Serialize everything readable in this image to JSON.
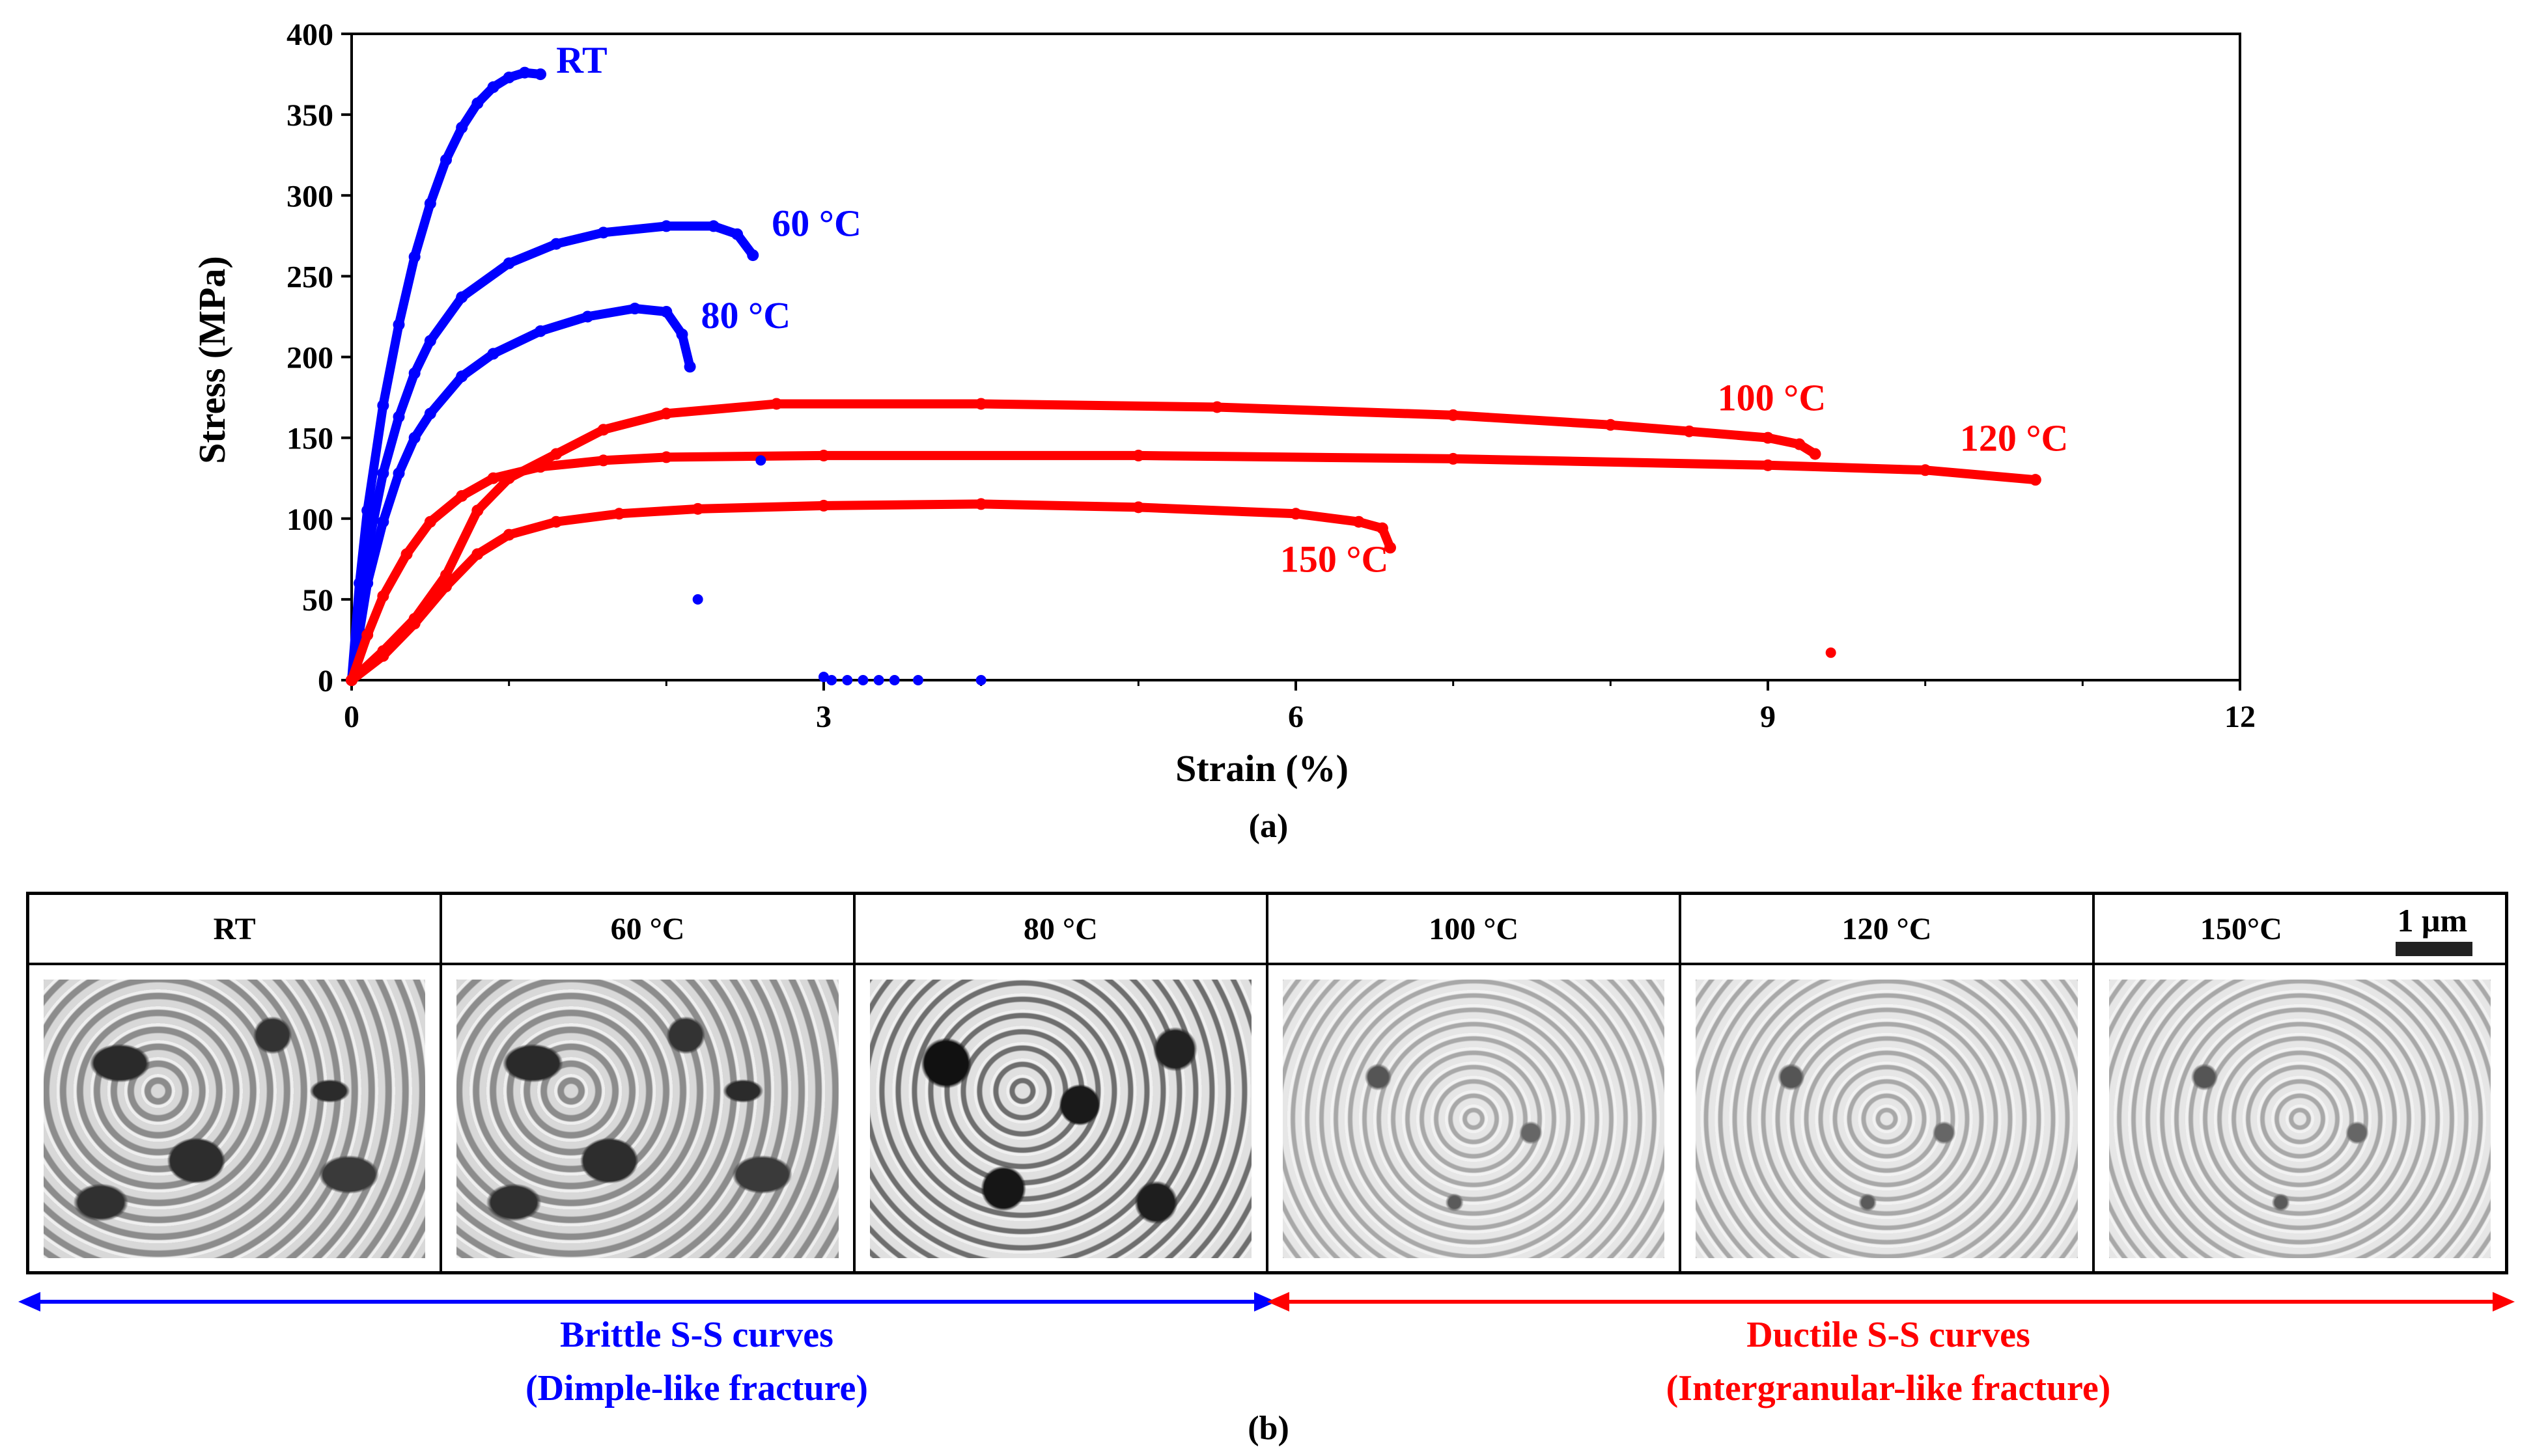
{
  "chart_data": {
    "type": "scatter",
    "xlabel": "Strain (%)",
    "ylabel": "Stress (MPa)",
    "xlim": [
      0,
      12
    ],
    "ylim": [
      0,
      400
    ],
    "xticks": [
      0,
      3,
      6,
      9,
      12
    ],
    "yticks": [
      0,
      50,
      100,
      150,
      200,
      250,
      300,
      350,
      400
    ],
    "series": [
      {
        "name": "RT",
        "label": "RT",
        "color": "#0000ff",
        "x": [
          0,
          0.05,
          0.1,
          0.2,
          0.3,
          0.4,
          0.5,
          0.6,
          0.7,
          0.8,
          0.9,
          1.0,
          1.1,
          1.2
        ],
        "y": [
          0,
          60,
          105,
          170,
          220,
          262,
          295,
          322,
          342,
          357,
          367,
          373,
          376,
          375
        ]
      },
      {
        "name": "60 °C",
        "label": "60 °C",
        "color": "#0000ff",
        "x": [
          0,
          0.05,
          0.1,
          0.2,
          0.3,
          0.4,
          0.5,
          0.7,
          1.0,
          1.3,
          1.6,
          2.0,
          2.3,
          2.45,
          2.55
        ],
        "y": [
          0,
          45,
          80,
          128,
          163,
          190,
          210,
          237,
          258,
          270,
          277,
          281,
          281,
          276,
          263
        ]
      },
      {
        "name": "80 °C",
        "label": "80 °C",
        "color": "#0000ff",
        "x": [
          0,
          0.05,
          0.1,
          0.2,
          0.3,
          0.4,
          0.5,
          0.7,
          0.9,
          1.2,
          1.5,
          1.8,
          2.0,
          2.1,
          2.15
        ],
        "y": [
          0,
          30,
          60,
          98,
          128,
          150,
          165,
          188,
          202,
          216,
          225,
          230,
          228,
          214,
          194
        ]
      },
      {
        "name": "100 °C",
        "label": "100 °C",
        "color": "#ff0000",
        "x": [
          0,
          0.2,
          0.4,
          0.6,
          0.8,
          1.0,
          1.3,
          1.6,
          2.0,
          2.7,
          4.0,
          5.5,
          7.0,
          8.0,
          8.5,
          9.0,
          9.2,
          9.3
        ],
        "y": [
          0,
          18,
          38,
          65,
          105,
          125,
          140,
          155,
          165,
          171,
          171,
          169,
          164,
          158,
          154,
          150,
          146,
          140
        ]
      },
      {
        "name": "120 °C",
        "label": "120 °C",
        "color": "#ff0000",
        "x": [
          0,
          0.1,
          0.2,
          0.35,
          0.5,
          0.7,
          0.9,
          1.2,
          1.6,
          2.0,
          3.0,
          5.0,
          7.0,
          9.0,
          10.0,
          10.7
        ],
        "y": [
          0,
          28,
          52,
          78,
          98,
          114,
          125,
          132,
          136,
          138,
          139,
          139,
          137,
          133,
          130,
          124
        ]
      },
      {
        "name": "150 °C",
        "label": "150 °C",
        "color": "#ff0000",
        "x": [
          0,
          0.2,
          0.4,
          0.6,
          0.8,
          1.0,
          1.3,
          1.7,
          2.2,
          3.0,
          4.0,
          5.0,
          6.0,
          6.4,
          6.55,
          6.6
        ],
        "y": [
          0,
          15,
          35,
          58,
          78,
          90,
          98,
          103,
          106,
          108,
          109,
          107,
          103,
          98,
          94,
          82
        ]
      }
    ],
    "stray_points": [
      {
        "color": "#0000ff",
        "x": [
          2.6,
          2.2,
          3.0,
          3.05,
          3.15,
          3.25,
          3.35,
          3.45,
          3.6,
          4.0
        ],
        "y": [
          136,
          50,
          2,
          0,
          0,
          0,
          0,
          0,
          0,
          0
        ]
      },
      {
        "color": "#ff0000",
        "x": [
          9.4
        ],
        "y": [
          17
        ]
      }
    ]
  },
  "captions": {
    "a": "(a)",
    "b": "(b)"
  },
  "panels": [
    {
      "label": "RT",
      "texture": "dimple"
    },
    {
      "label": "60 °C",
      "texture": "dimple"
    },
    {
      "label": "80 °C",
      "texture": "mixed"
    },
    {
      "label": "100 °C",
      "texture": "grain"
    },
    {
      "label": "120 °C",
      "texture": "grain"
    },
    {
      "label": "150°C",
      "texture": "grain"
    }
  ],
  "scale_bar": "1 μm",
  "regions": {
    "brittle": {
      "line1": "Brittle S-S curves",
      "line2": "(Dimple-like fracture)",
      "color": "#0000ff"
    },
    "ductile": {
      "line1": "Ductile S-S curves",
      "line2": "(Intergranular-like fracture)",
      "color": "#ff0000"
    }
  }
}
